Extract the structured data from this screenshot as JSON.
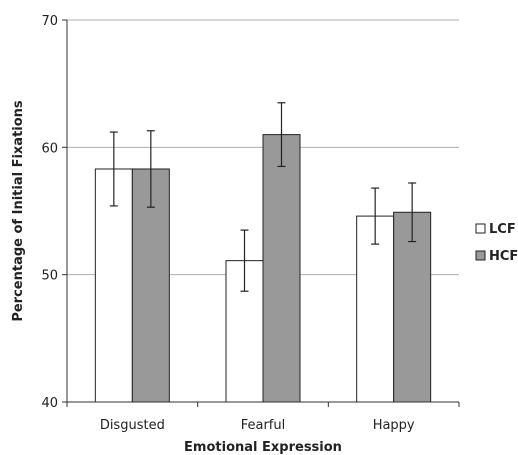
{
  "chart_data": {
    "type": "bar",
    "title": "",
    "xlabel": "Emotional Expression",
    "ylabel": "Percentage of Initial Fixations",
    "categories": [
      "Disgusted",
      "Fearful",
      "Happy"
    ],
    "ylim": [
      40,
      70
    ],
    "yticks": [
      40,
      50,
      60,
      70
    ],
    "grid": true,
    "legend_position": "right",
    "series": [
      {
        "name": "LCF",
        "values": [
          58.3,
          51.1,
          54.6
        ],
        "errors": [
          2.9,
          2.4,
          2.2
        ],
        "color": "#ffffff"
      },
      {
        "name": "HCF",
        "values": [
          58.3,
          61.0,
          54.9
        ],
        "errors": [
          3.0,
          2.5,
          2.3
        ],
        "color": "#999999"
      }
    ]
  }
}
